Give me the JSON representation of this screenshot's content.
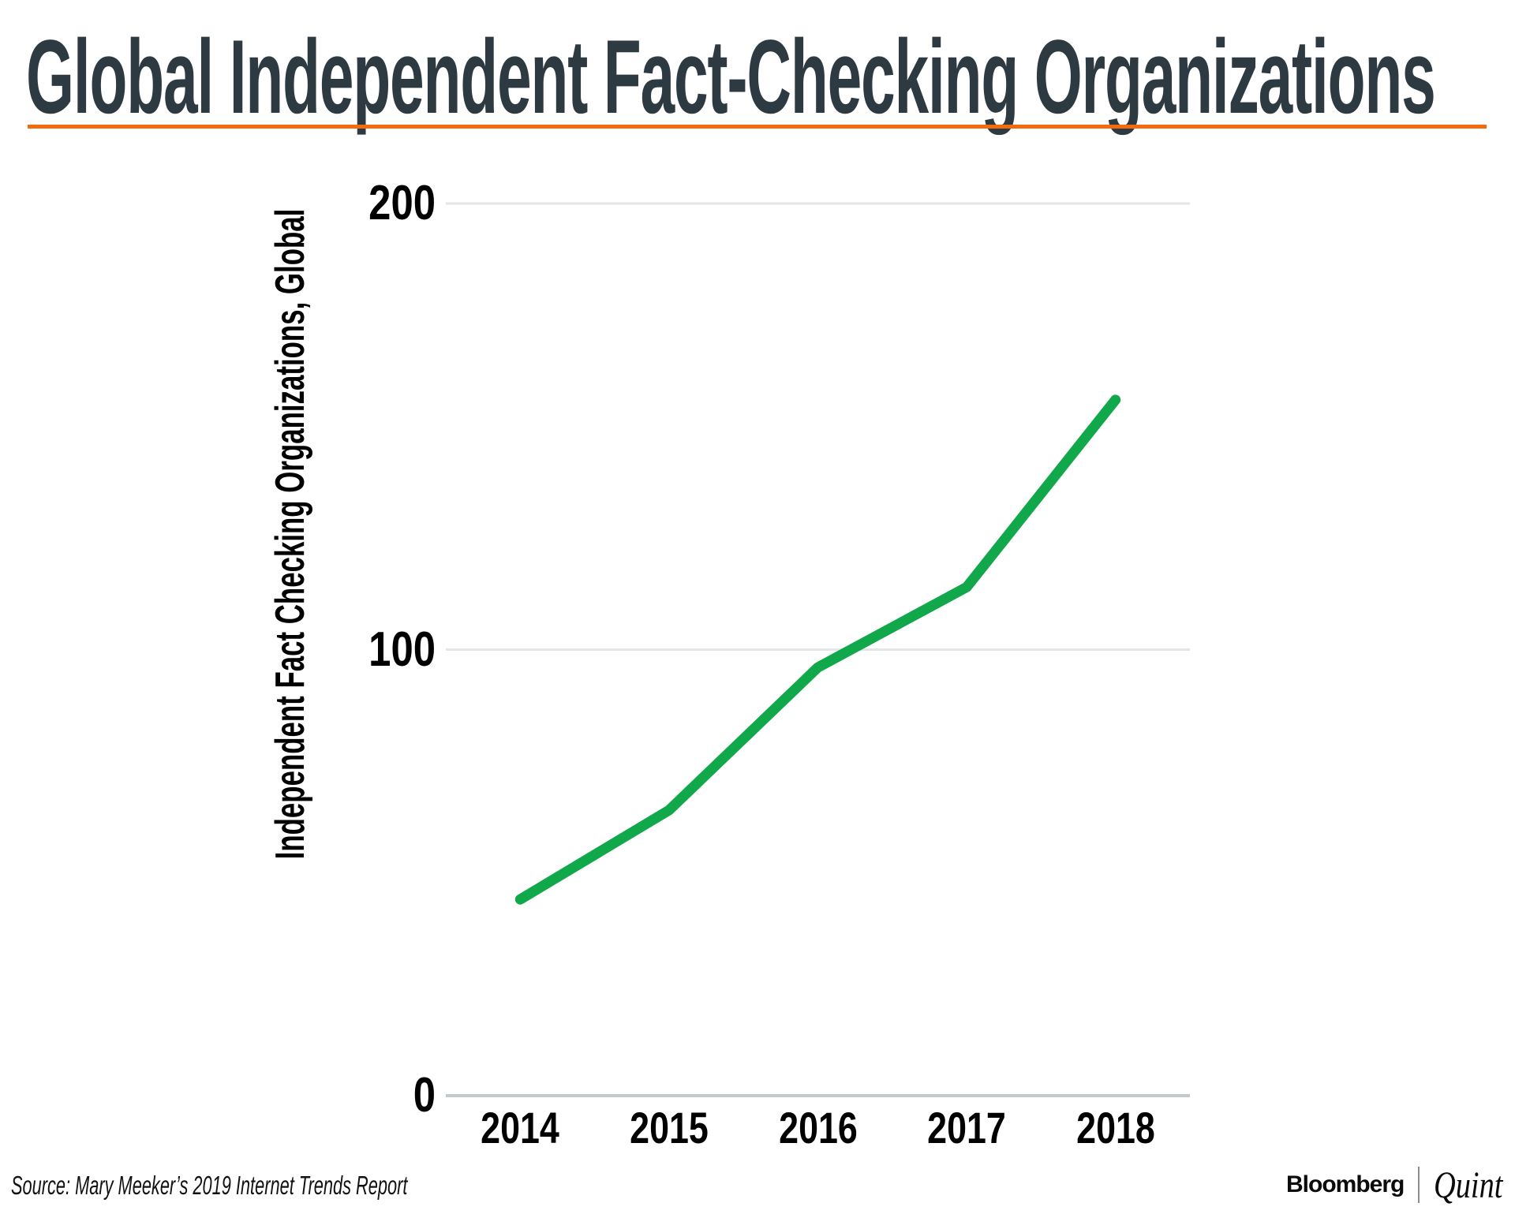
{
  "header": {
    "title": "Global Independent Fact-Checking Organizations",
    "accent_color": "#f26b0c"
  },
  "chart_data": {
    "type": "line",
    "title": "Global Independent Fact-Checking Organizations",
    "xlabel": "",
    "ylabel": "Independent Fact Checking Organizations, Global",
    "categories": [
      "2014",
      "2015",
      "2016",
      "2017",
      "2018"
    ],
    "series": [
      {
        "name": "Independent Fact Checking Organizations, Global",
        "values": [
          44,
          64,
          96,
          114,
          156
        ]
      }
    ],
    "ylim": [
      0,
      200
    ],
    "yticks": [
      0,
      100,
      200
    ],
    "grid": true,
    "legend_position": "none",
    "line_color": "#10a84a",
    "gridline_color": "#e3e6e9",
    "baseline_color": "#c3c9ce"
  },
  "footer": {
    "source": "Source: Mary Meeker’s 2019 Internet Trends Report",
    "brand_left": "Bloomberg",
    "brand_divider": "|",
    "brand_right": "Quint"
  }
}
